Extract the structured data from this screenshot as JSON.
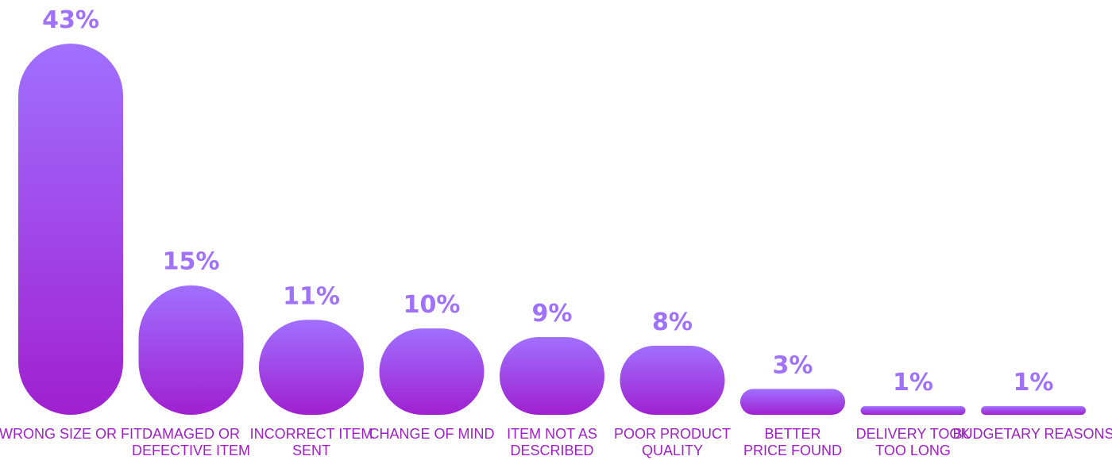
{
  "colors": {
    "bar_top": "#a070ff",
    "bar_bottom": "#a020d0",
    "value_label": "#a070ff",
    "category_label": "#a020c8",
    "background": "#ffffff"
  },
  "chart_data": {
    "type": "bar",
    "title": "",
    "xlabel": "",
    "ylabel": "",
    "ylim": [
      0,
      43
    ],
    "grid": false,
    "legend": "none",
    "value_suffix": "%",
    "categories": [
      [
        "WRONG SIZE OR FIT"
      ],
      [
        "DAMAGED OR",
        "DEFECTIVE ITEM"
      ],
      [
        "INCORRECT ITEM",
        "SENT"
      ],
      [
        "CHANGE OF MIND"
      ],
      [
        "ITEM NOT AS",
        "DESCRIBED"
      ],
      [
        "POOR PRODUCT",
        "QUALITY"
      ],
      [
        "BETTER",
        "PRICE FOUND"
      ],
      [
        "DELIVERY TOOK",
        "TOO LONG"
      ],
      [
        "BUDGETARY REASONS"
      ]
    ],
    "values": [
      43,
      15,
      11,
      10,
      9,
      8,
      3,
      1,
      1
    ],
    "value_labels": [
      "43%",
      "15%",
      "11%",
      "10%",
      "9%",
      "8%",
      "3%",
      "1%",
      "1%"
    ]
  }
}
